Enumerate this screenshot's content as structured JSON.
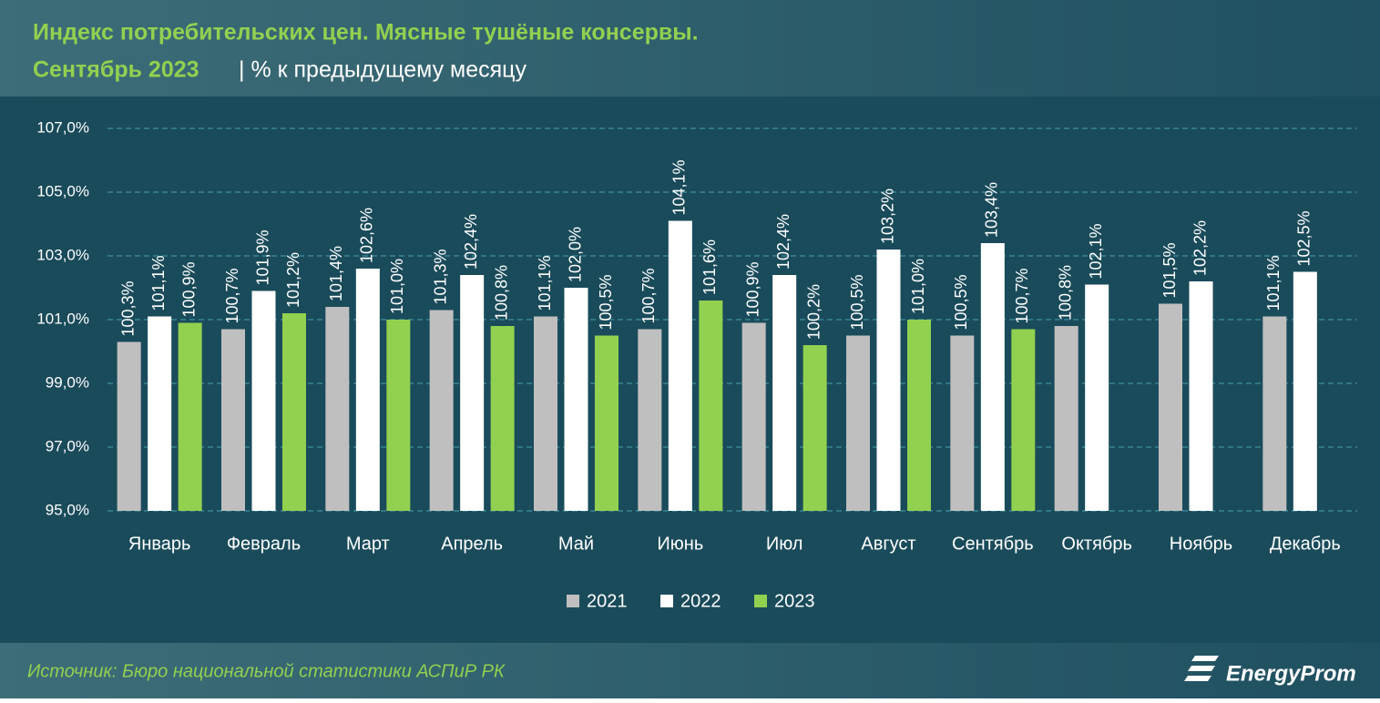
{
  "header": {
    "title": "Индекс потребительских цен. Мясные тушёные консервы.",
    "period": "Сентябрь 2023",
    "unit": "| % к предыдущему месяцу"
  },
  "chart_data": {
    "type": "bar",
    "categories": [
      "Январь",
      "Февраль",
      "Март",
      "Апрель",
      "Май",
      "Июнь",
      "Июл",
      "Август",
      "Сентябрь",
      "Октябрь",
      "Ноябрь",
      "Декабрь"
    ],
    "series": [
      {
        "name": "2021",
        "color": "#bfbfbf",
        "values": [
          100.3,
          100.7,
          101.4,
          101.3,
          101.1,
          100.7,
          100.9,
          100.5,
          100.5,
          100.8,
          101.5,
          101.1
        ],
        "value_labels": [
          "100,3%",
          "100,7%",
          "101,4%",
          "101,3%",
          "101,1%",
          "100,7%",
          "100,9%",
          "100,5%",
          "100,5%",
          "100,8%",
          "101,5%",
          "101,1%"
        ]
      },
      {
        "name": "2022",
        "color": "#ffffff",
        "values": [
          101.1,
          101.9,
          102.6,
          102.4,
          102.0,
          104.1,
          102.4,
          103.2,
          103.4,
          102.1,
          102.2,
          102.5
        ],
        "value_labels": [
          "101,1%",
          "101,9%",
          "102,6%",
          "102,4%",
          "102,0%",
          "104,1%",
          "102,4%",
          "103,2%",
          "103,4%",
          "102,1%",
          "102,2%",
          "102,5%"
        ]
      },
      {
        "name": "2023",
        "color": "#92d050",
        "values": [
          100.9,
          101.2,
          101.0,
          100.8,
          100.5,
          101.6,
          100.2,
          101.0,
          100.7,
          null,
          null,
          null
        ],
        "value_labels": [
          "100,9%",
          "101,2%",
          "101,0%",
          "100,8%",
          "100,5%",
          "101,6%",
          "100,2%",
          "101,0%",
          "100,7%",
          null,
          null,
          null
        ]
      }
    ],
    "ylim": [
      95,
      107
    ],
    "yticks": [
      {
        "value": 95,
        "label": "95,0%"
      },
      {
        "value": 97,
        "label": "97,0%"
      },
      {
        "value": 99,
        "label": "99,0%"
      },
      {
        "value": 101,
        "label": "101,0%"
      },
      {
        "value": 103,
        "label": "103,0%"
      },
      {
        "value": 105,
        "label": "105,0%"
      },
      {
        "value": 107,
        "label": "107,0%"
      }
    ],
    "grid": true,
    "legend": "bottom"
  },
  "footer": {
    "source": "Источник: Бюро национальной статистики АСПиР РК",
    "logo": "EnergyProm"
  }
}
